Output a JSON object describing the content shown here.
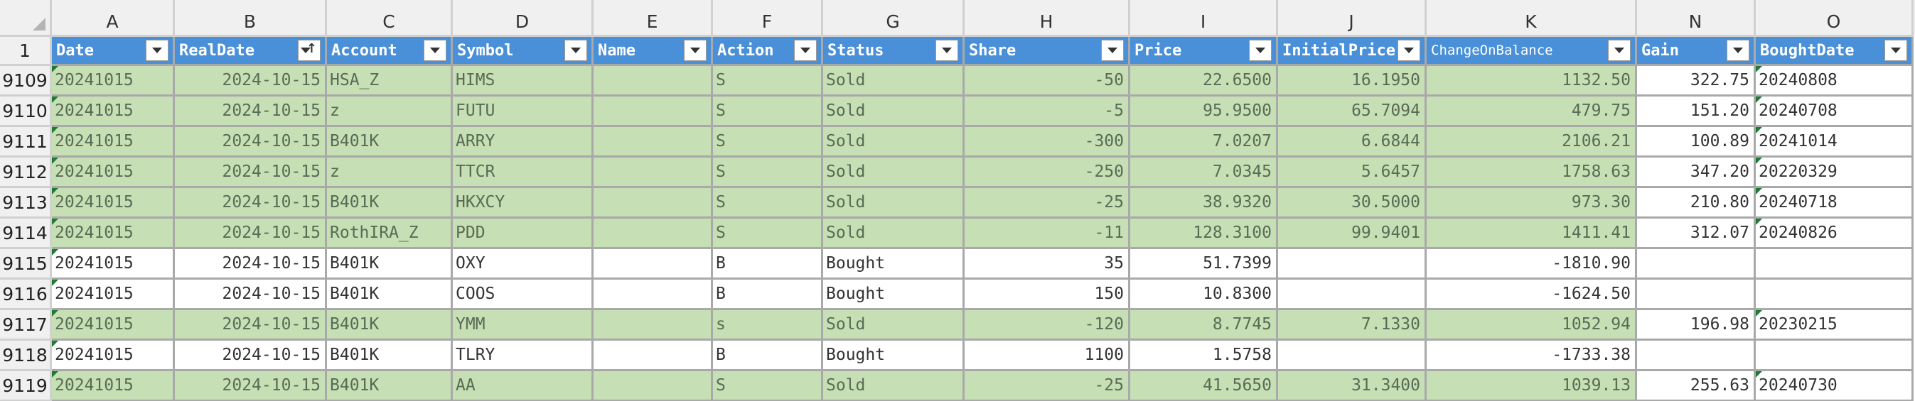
{
  "sheet": {
    "column_letters": [
      "A",
      "B",
      "C",
      "D",
      "E",
      "F",
      "G",
      "H",
      "I",
      "J",
      "K",
      "N",
      "O"
    ],
    "header_row_number": "1",
    "headers": [
      "Date",
      "RealDate",
      "Account",
      "Symbol",
      "Name",
      "Action",
      "Status",
      "Share",
      "Price",
      "InitialPrice",
      "ChangeOnBalance",
      "Gain",
      "BoughtDate"
    ],
    "rows": [
      {
        "num": "9109",
        "status_kind": "sold",
        "cells": [
          "20241015",
          "2024-10-15",
          "HSA_Z",
          "HIMS",
          "",
          "S",
          "Sold",
          "-50",
          "22.6500",
          "16.1950",
          "1132.50",
          "322.75",
          "20240808"
        ]
      },
      {
        "num": "9110",
        "status_kind": "sold",
        "cells": [
          "20241015",
          "2024-10-15",
          "z",
          "FUTU",
          "",
          "S",
          "Sold",
          "-5",
          "95.9500",
          "65.7094",
          "479.75",
          "151.20",
          "20240708"
        ]
      },
      {
        "num": "9111",
        "status_kind": "sold",
        "cells": [
          "20241015",
          "2024-10-15",
          "B401K",
          "ARRY",
          "",
          "S",
          "Sold",
          "-300",
          "7.0207",
          "6.6844",
          "2106.21",
          "100.89",
          "20241014"
        ]
      },
      {
        "num": "9112",
        "status_kind": "sold",
        "cells": [
          "20241015",
          "2024-10-15",
          "z",
          "TTCR",
          "",
          "S",
          "Sold",
          "-250",
          "7.0345",
          "5.6457",
          "1758.63",
          "347.20",
          "20220329"
        ]
      },
      {
        "num": "9113",
        "status_kind": "sold",
        "cells": [
          "20241015",
          "2024-10-15",
          "B401K",
          "HKXCY",
          "",
          "S",
          "Sold",
          "-25",
          "38.9320",
          "30.5000",
          "973.30",
          "210.80",
          "20240718"
        ]
      },
      {
        "num": "9114",
        "status_kind": "sold",
        "cells": [
          "20241015",
          "2024-10-15",
          "RothIRA_Z",
          "PDD",
          "",
          "S",
          "Sold",
          "-11",
          "128.3100",
          "99.9401",
          "1411.41",
          "312.07",
          "20240826"
        ]
      },
      {
        "num": "9115",
        "status_kind": "bought",
        "cells": [
          "20241015",
          "2024-10-15",
          "B401K",
          "OXY",
          "",
          "B",
          "Bought",
          "35",
          "51.7399",
          "",
          "-1810.90",
          "",
          ""
        ]
      },
      {
        "num": "9116",
        "status_kind": "bought",
        "cells": [
          "20241015",
          "2024-10-15",
          "B401K",
          "COOS",
          "",
          "B",
          "Bought",
          "150",
          "10.8300",
          "",
          "-1624.50",
          "",
          ""
        ]
      },
      {
        "num": "9117",
        "status_kind": "sold",
        "cells": [
          "20241015",
          "2024-10-15",
          "B401K",
          "YMM",
          "",
          "s",
          "Sold",
          "-120",
          "8.7745",
          "7.1330",
          "1052.94",
          "196.98",
          "20230215"
        ]
      },
      {
        "num": "9118",
        "status_kind": "bought",
        "cells": [
          "20241015",
          "2024-10-15",
          "B401K",
          "TLRY",
          "",
          "B",
          "Bought",
          "1100",
          "1.5758",
          "",
          "-1733.38",
          "",
          ""
        ]
      },
      {
        "num": "9119",
        "status_kind": "sold",
        "cells": [
          "20241015",
          "2024-10-15",
          "B401K",
          "AA",
          "",
          "S",
          "Sold",
          "-25",
          "41.5650",
          "31.3400",
          "1039.13",
          "255.63",
          "20240730"
        ]
      }
    ]
  }
}
